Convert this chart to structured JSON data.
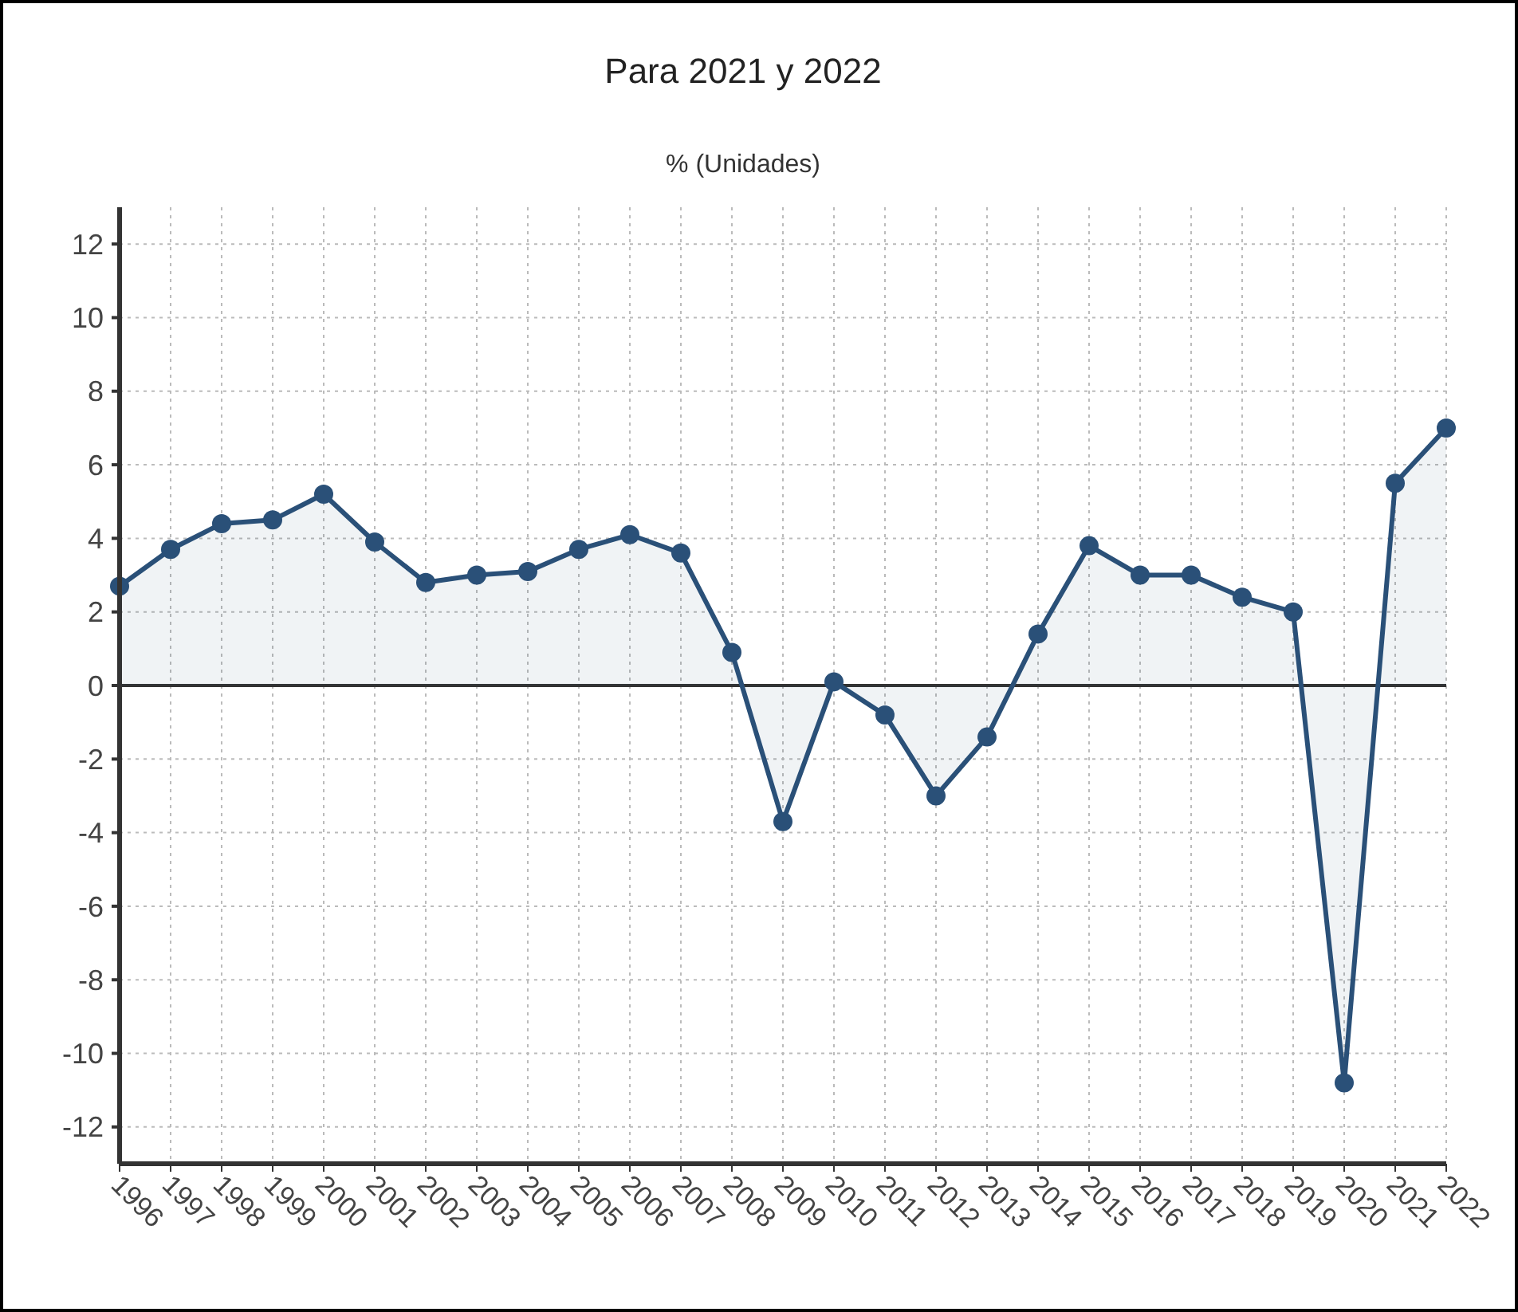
{
  "chart_data": {
    "type": "area",
    "title": "Para 2021 y 2022",
    "subtitle": "% (Unidades)",
    "categories": [
      "1996",
      "1997",
      "1998",
      "1999",
      "2000",
      "2001",
      "2002",
      "2003",
      "2004",
      "2005",
      "2006",
      "2007",
      "2008",
      "2009",
      "2010",
      "2011",
      "2012",
      "2013",
      "2014",
      "2015",
      "2016",
      "2017",
      "2018",
      "2019",
      "2020",
      "2021",
      "2022"
    ],
    "series": [
      {
        "color": "#2a5078",
        "values": [
          2.7,
          3.7,
          4.4,
          4.5,
          5.2,
          3.9,
          2.8,
          3.0,
          3.1,
          3.7,
          4.1,
          3.6,
          0.9,
          -3.7,
          0.1,
          -0.8,
          -3.0,
          -1.4,
          1.4,
          3.8,
          3.0,
          3.0,
          2.4,
          2.0,
          -10.8,
          5.5,
          7.0
        ]
      }
    ],
    "ylim": [
      -13,
      13
    ],
    "yticks": [
      -12,
      -10,
      -8,
      -6,
      -4,
      -2,
      0,
      2,
      4,
      6,
      8,
      10,
      12
    ],
    "ref_lines": [
      {
        "axis": "y",
        "value": 0,
        "color": "#333333"
      }
    ],
    "grid": true,
    "marker": "circle",
    "line_style": "solid"
  }
}
